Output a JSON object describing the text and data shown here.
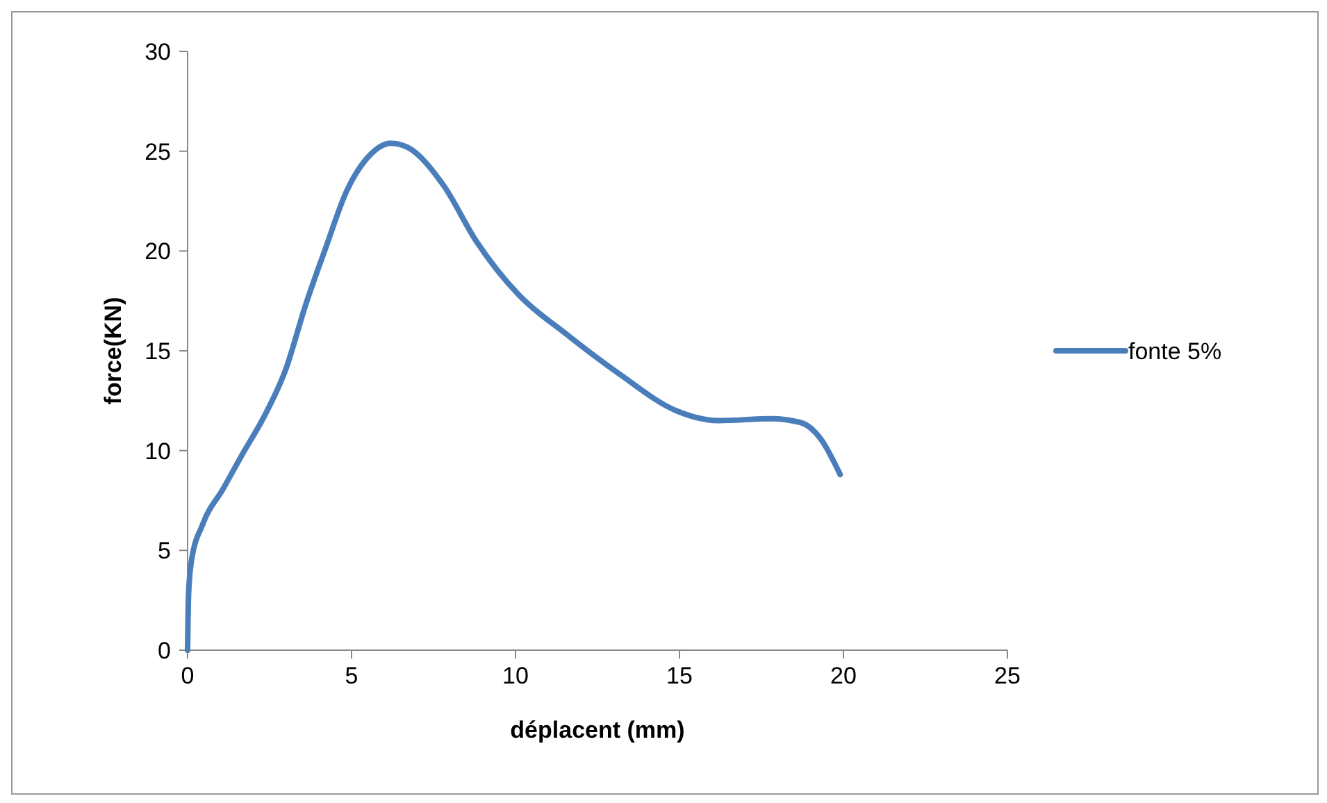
{
  "chart_data": {
    "type": "line",
    "xlabel": "déplacent (mm)",
    "ylabel": "force(KN)",
    "xlim": [
      0,
      25
    ],
    "ylim": [
      0,
      30
    ],
    "xticks": [
      0,
      5,
      10,
      15,
      20,
      25
    ],
    "yticks": [
      0,
      5,
      10,
      15,
      20,
      25,
      30
    ],
    "grid": false,
    "legend": "right",
    "marker": "none",
    "line_style": "solid",
    "series": [
      {
        "name": "fonte 5%",
        "color": "#4a7ebb",
        "x": [
          0,
          0.03,
          0.12,
          0.46,
          1.09,
          1.7,
          2.3,
          3.0,
          3.6,
          4.2,
          4.85,
          5.5,
          6.2,
          6.7,
          7.8,
          8.8,
          10.1,
          11.5,
          13.2,
          14.9,
          16.2,
          17.8,
          18.7,
          19.3,
          19.9
        ],
        "values": [
          0,
          2.8,
          4.5,
          6.3,
          8.1,
          9.9,
          11.6,
          14.1,
          17.3,
          20.1,
          23.0,
          24.7,
          25.4,
          25.2,
          23.3,
          20.5,
          17.8,
          15.9,
          13.8,
          12.0,
          11.5,
          11.6,
          11.4,
          10.6,
          8.8
        ]
      }
    ]
  }
}
